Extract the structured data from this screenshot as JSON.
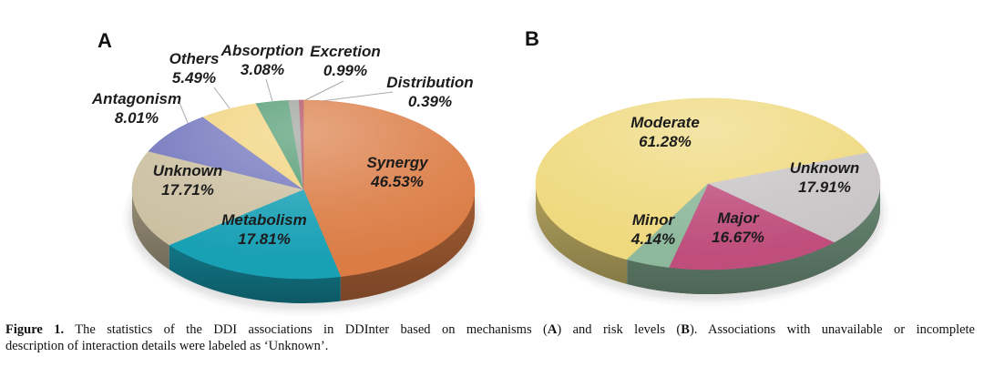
{
  "figure": {
    "panel_a": "A",
    "panel_b": "B"
  },
  "chart_data": [
    {
      "type": "pie",
      "panel": "A",
      "style": "3d-pie",
      "start_angle_deg": 0,
      "legend_position": "labels-around-and-on-slices",
      "slices": [
        {
          "label": "Synergy",
          "value": 46.53,
          "pct": "46.53%",
          "color": "#DB7C45"
        },
        {
          "label": "Metabolism",
          "value": 17.81,
          "pct": "17.81%",
          "color": "#18A0B5"
        },
        {
          "label": "Unknown",
          "value": 17.71,
          "pct": "17.71%",
          "color": "#CCC0A1"
        },
        {
          "label": "Antagonism",
          "value": 8.01,
          "pct": "8.01%",
          "color": "#7276BD"
        },
        {
          "label": "Others",
          "value": 5.49,
          "pct": "5.49%",
          "color": "#F2D37C"
        },
        {
          "label": "Absorption",
          "value": 3.08,
          "pct": "3.08%",
          "color": "#4E9970"
        },
        {
          "label": "Excretion",
          "value": 0.99,
          "pct": "0.99%",
          "color": "#9DA09D"
        },
        {
          "label": "Distribution",
          "value": 0.39,
          "pct": "0.39%",
          "color": "#AF4A5B"
        }
      ]
    },
    {
      "type": "pie",
      "panel": "B",
      "style": "3d-pie",
      "start_angle_deg": 208,
      "legend_position": "labels-on-slices",
      "slices": [
        {
          "label": "Moderate",
          "value": 61.28,
          "pct": "61.28%",
          "color": "#EFD97E"
        },
        {
          "label": "Unknown",
          "value": 17.91,
          "pct": "17.91%",
          "color": "#C9C5C7"
        },
        {
          "label": "Major",
          "value": 16.67,
          "pct": "16.67%",
          "color": "#BF4E7D"
        },
        {
          "label": "Minor",
          "value": 4.14,
          "pct": "4.14%",
          "color": "#8DB89B"
        }
      ]
    }
  ],
  "caption": {
    "tag": "Figure 1.",
    "line1_a": " The statistics of the DDI associations in DDInter based on mechanisms (",
    "panel_a": "A",
    "line1_b": ") and risk levels (",
    "panel_b": "B",
    "line1_c": "). Associations with unavailable or incomplete",
    "line2": "description of interaction details were labeled as ‘Unknown’."
  }
}
